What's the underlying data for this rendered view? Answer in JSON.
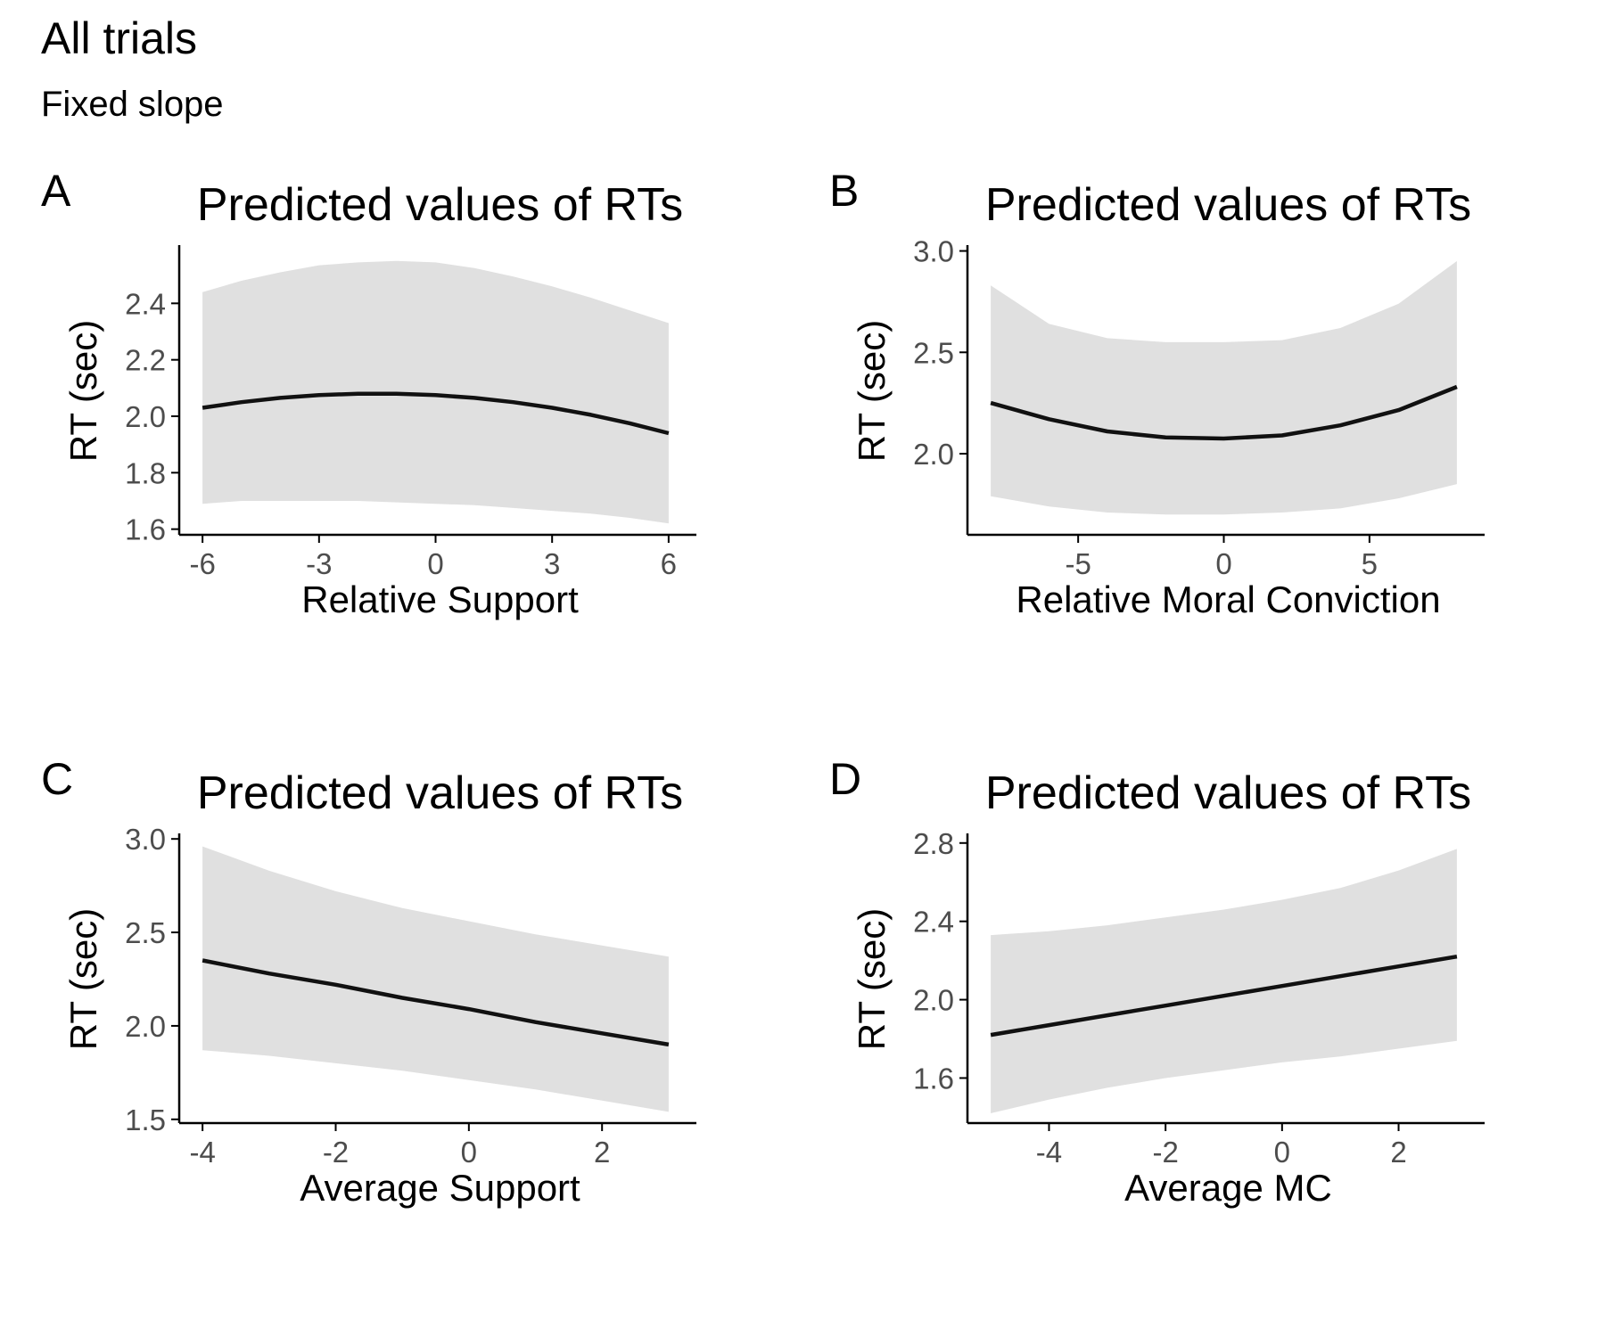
{
  "figure": {
    "title": "All trials",
    "subtitle": "Fixed slope"
  },
  "colors": {
    "ribbon": "#e0e0e0",
    "line": "#111111",
    "axis": "#000000",
    "tick_text": "#4d4d4d"
  },
  "chart_data": [
    {
      "panel": "A",
      "type": "line",
      "title": "Predicted values of RTs",
      "xlabel": "Relative Support",
      "ylabel": "RT (sec)",
      "xlim": [
        -6.6,
        6.6
      ],
      "ylim": [
        1.58,
        2.6
      ],
      "xticks": [
        -6,
        -3,
        0,
        3,
        6
      ],
      "xtick_labels": [
        "-6",
        "-3",
        "0",
        "3",
        "6"
      ],
      "yticks": [
        1.6,
        1.8,
        2.0,
        2.2,
        2.4
      ],
      "ytick_labels": [
        "1.6",
        "1.8",
        "2.0",
        "2.2",
        "2.4"
      ],
      "grid": false,
      "x": [
        -6,
        -5,
        -4,
        -3,
        -2,
        -1,
        0,
        1,
        2,
        3,
        4,
        5,
        6
      ],
      "series": [
        {
          "values": [
            2.03,
            2.05,
            2.065,
            2.075,
            2.08,
            2.08,
            2.075,
            2.065,
            2.05,
            2.03,
            2.005,
            1.975,
            1.94
          ],
          "lower": [
            1.69,
            1.7,
            1.7,
            1.7,
            1.7,
            1.695,
            1.69,
            1.685,
            1.675,
            1.665,
            1.655,
            1.64,
            1.62
          ],
          "upper": [
            2.44,
            2.48,
            2.51,
            2.535,
            2.545,
            2.55,
            2.545,
            2.525,
            2.495,
            2.46,
            2.42,
            2.375,
            2.33
          ]
        }
      ]
    },
    {
      "panel": "B",
      "type": "line",
      "title": "Predicted values of RTs",
      "xlabel": "Relative Moral Conviction",
      "ylabel": "RT (sec)",
      "xlim": [
        -8.8,
        8.8
      ],
      "ylim": [
        1.6,
        3.02
      ],
      "xticks": [
        -5,
        0,
        5
      ],
      "xtick_labels": [
        "-5",
        "0",
        "5"
      ],
      "yticks": [
        2.0,
        2.5,
        3.0
      ],
      "ytick_labels": [
        "2.0",
        "2.5",
        "3.0"
      ],
      "grid": false,
      "x": [
        -8,
        -6,
        -4,
        -2,
        0,
        2,
        4,
        6,
        8
      ],
      "series": [
        {
          "values": [
            2.25,
            2.17,
            2.11,
            2.08,
            2.075,
            2.09,
            2.14,
            2.215,
            2.33
          ],
          "lower": [
            1.79,
            1.74,
            1.71,
            1.7,
            1.7,
            1.71,
            1.73,
            1.78,
            1.85
          ],
          "upper": [
            2.83,
            2.64,
            2.57,
            2.55,
            2.55,
            2.56,
            2.62,
            2.74,
            2.95
          ]
        }
      ]
    },
    {
      "panel": "C",
      "type": "line",
      "title": "Predicted values of RTs",
      "xlabel": "Average Support",
      "ylabel": "RT (sec)",
      "xlim": [
        -4.35,
        3.35
      ],
      "ylim": [
        1.48,
        3.02
      ],
      "xticks": [
        -4,
        -2,
        0,
        2
      ],
      "xtick_labels": [
        "-4",
        "-2",
        "0",
        "2"
      ],
      "yticks": [
        1.5,
        2.0,
        2.5,
        3.0
      ],
      "ytick_labels": [
        "1.5",
        "2.0",
        "2.5",
        "3.0"
      ],
      "grid": false,
      "x": [
        -4,
        -3,
        -2,
        -1,
        0,
        1,
        2,
        3
      ],
      "series": [
        {
          "values": [
            2.35,
            2.28,
            2.22,
            2.15,
            2.09,
            2.02,
            1.96,
            1.9
          ],
          "lower": [
            1.87,
            1.84,
            1.8,
            1.76,
            1.71,
            1.66,
            1.6,
            1.54
          ],
          "upper": [
            2.96,
            2.83,
            2.72,
            2.63,
            2.56,
            2.49,
            2.43,
            2.37
          ]
        }
      ]
    },
    {
      "panel": "D",
      "type": "line",
      "title": "Predicted values of RTs",
      "xlabel": "Average MC",
      "ylabel": "RT (sec)",
      "xlim": [
        -5.4,
        3.4
      ],
      "ylim": [
        1.37,
        2.84
      ],
      "xticks": [
        -4,
        -2,
        0,
        2
      ],
      "xtick_labels": [
        "-4",
        "-2",
        "0",
        "2"
      ],
      "yticks": [
        1.6,
        2.0,
        2.4,
        2.8
      ],
      "ytick_labels": [
        "1.6",
        "2.0",
        "2.4",
        "2.8"
      ],
      "grid": false,
      "x": [
        -5,
        -4,
        -3,
        -2,
        -1,
        0,
        1,
        2,
        3
      ],
      "series": [
        {
          "values": [
            1.82,
            1.87,
            1.92,
            1.97,
            2.02,
            2.07,
            2.12,
            2.17,
            2.22
          ],
          "lower": [
            1.42,
            1.49,
            1.55,
            1.6,
            1.64,
            1.68,
            1.71,
            1.75,
            1.79
          ],
          "upper": [
            2.33,
            2.35,
            2.38,
            2.42,
            2.46,
            2.51,
            2.57,
            2.66,
            2.77
          ]
        }
      ]
    }
  ]
}
